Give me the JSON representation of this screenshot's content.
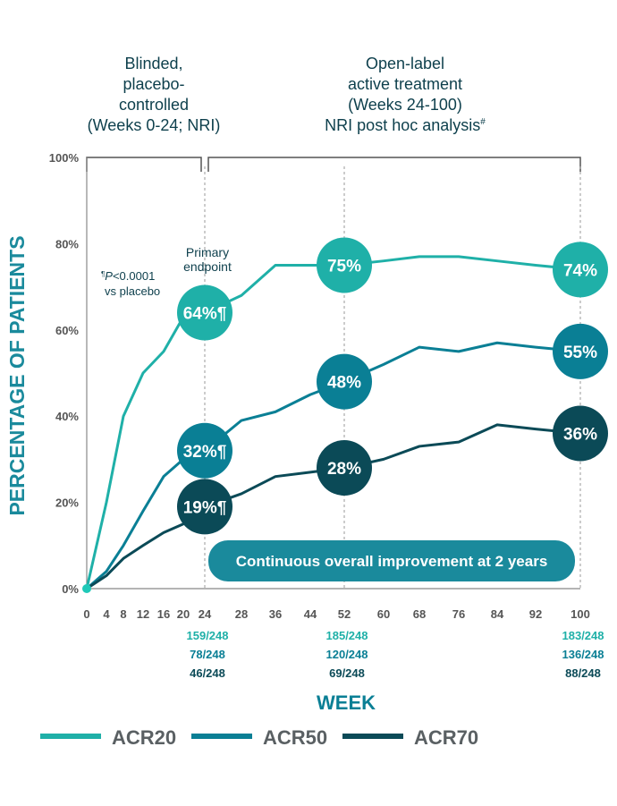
{
  "chart_data": {
    "type": "line",
    "title": "",
    "xlabel": "WEEK",
    "ylabel": "PERCENTAGE OF PATIENTS",
    "ylim": [
      0,
      100
    ],
    "y_ticks": [
      "0%",
      "20%",
      "40%",
      "60%",
      "80%",
      "100%"
    ],
    "x": [
      0,
      4,
      8,
      12,
      16,
      20,
      24,
      28,
      36,
      44,
      52,
      60,
      68,
      76,
      84,
      92,
      100
    ],
    "x_ticks": [
      "0",
      "4",
      "8",
      "12",
      "16",
      "20",
      "24",
      "28",
      "36",
      "44",
      "52",
      "60",
      "68",
      "76",
      "84",
      "92",
      "100"
    ],
    "grid": false,
    "legend_position": "bottom",
    "series": [
      {
        "name": "ACR20",
        "color": "#1fb0a8",
        "values": [
          0,
          20,
          40,
          50,
          55,
          63,
          64,
          68,
          75,
          75,
          75,
          76,
          77,
          77,
          76,
          75,
          74
        ],
        "markers": [
          {
            "week": 24,
            "label": "64%¶"
          },
          {
            "week": 52,
            "label": "75%"
          },
          {
            "week": 100,
            "label": "74%"
          }
        ],
        "counts": [
          "159/248",
          "185/248",
          "183/248"
        ]
      },
      {
        "name": "ACR50",
        "color": "#0a7f95",
        "values": [
          0,
          4,
          10,
          18,
          26,
          30,
          32,
          39,
          41,
          45,
          48,
          52,
          56,
          55,
          57,
          56,
          55
        ],
        "markers": [
          {
            "week": 24,
            "label": "32%¶"
          },
          {
            "week": 52,
            "label": "48%"
          },
          {
            "week": 100,
            "label": "55%"
          }
        ],
        "counts": [
          "78/248",
          "120/248",
          "136/248"
        ]
      },
      {
        "name": "ACR70",
        "color": "#0b4a57",
        "values": [
          0,
          3,
          7,
          10,
          13,
          15,
          19,
          22,
          26,
          27,
          28,
          30,
          33,
          34,
          38,
          37,
          36
        ],
        "markers": [
          {
            "week": 24,
            "label": "19%¶"
          },
          {
            "week": 52,
            "label": "28%"
          },
          {
            "week": 100,
            "label": "36%"
          }
        ],
        "counts": [
          "46/248",
          "69/248",
          "88/248"
        ]
      }
    ],
    "count_weeks": [
      24,
      52,
      100
    ],
    "periods": [
      {
        "lines": [
          "Blinded,",
          "placebo-",
          "controlled",
          "(Weeks 0-24; NRI)"
        ]
      },
      {
        "lines": [
          "Open-label",
          "active treatment",
          "(Weeks 24-100)",
          "NRI post hoc analysis"
        ],
        "superscript": "#"
      }
    ],
    "annotations": {
      "primary_endpoint": [
        "Primary",
        "endpoint"
      ],
      "pvalue_mark": "¶",
      "pvalue_italic": "P",
      "pvalue_text": "<0.0001",
      "pvalue_line2": "vs placebo",
      "banner": "Continuous overall improvement at 2 years"
    },
    "colors": {
      "text": "#0d3f4c",
      "axis": "#555555",
      "banner": "#1a8a9c",
      "axis_title": "#1a8a9c",
      "legend_text": "#5a6063"
    }
  }
}
